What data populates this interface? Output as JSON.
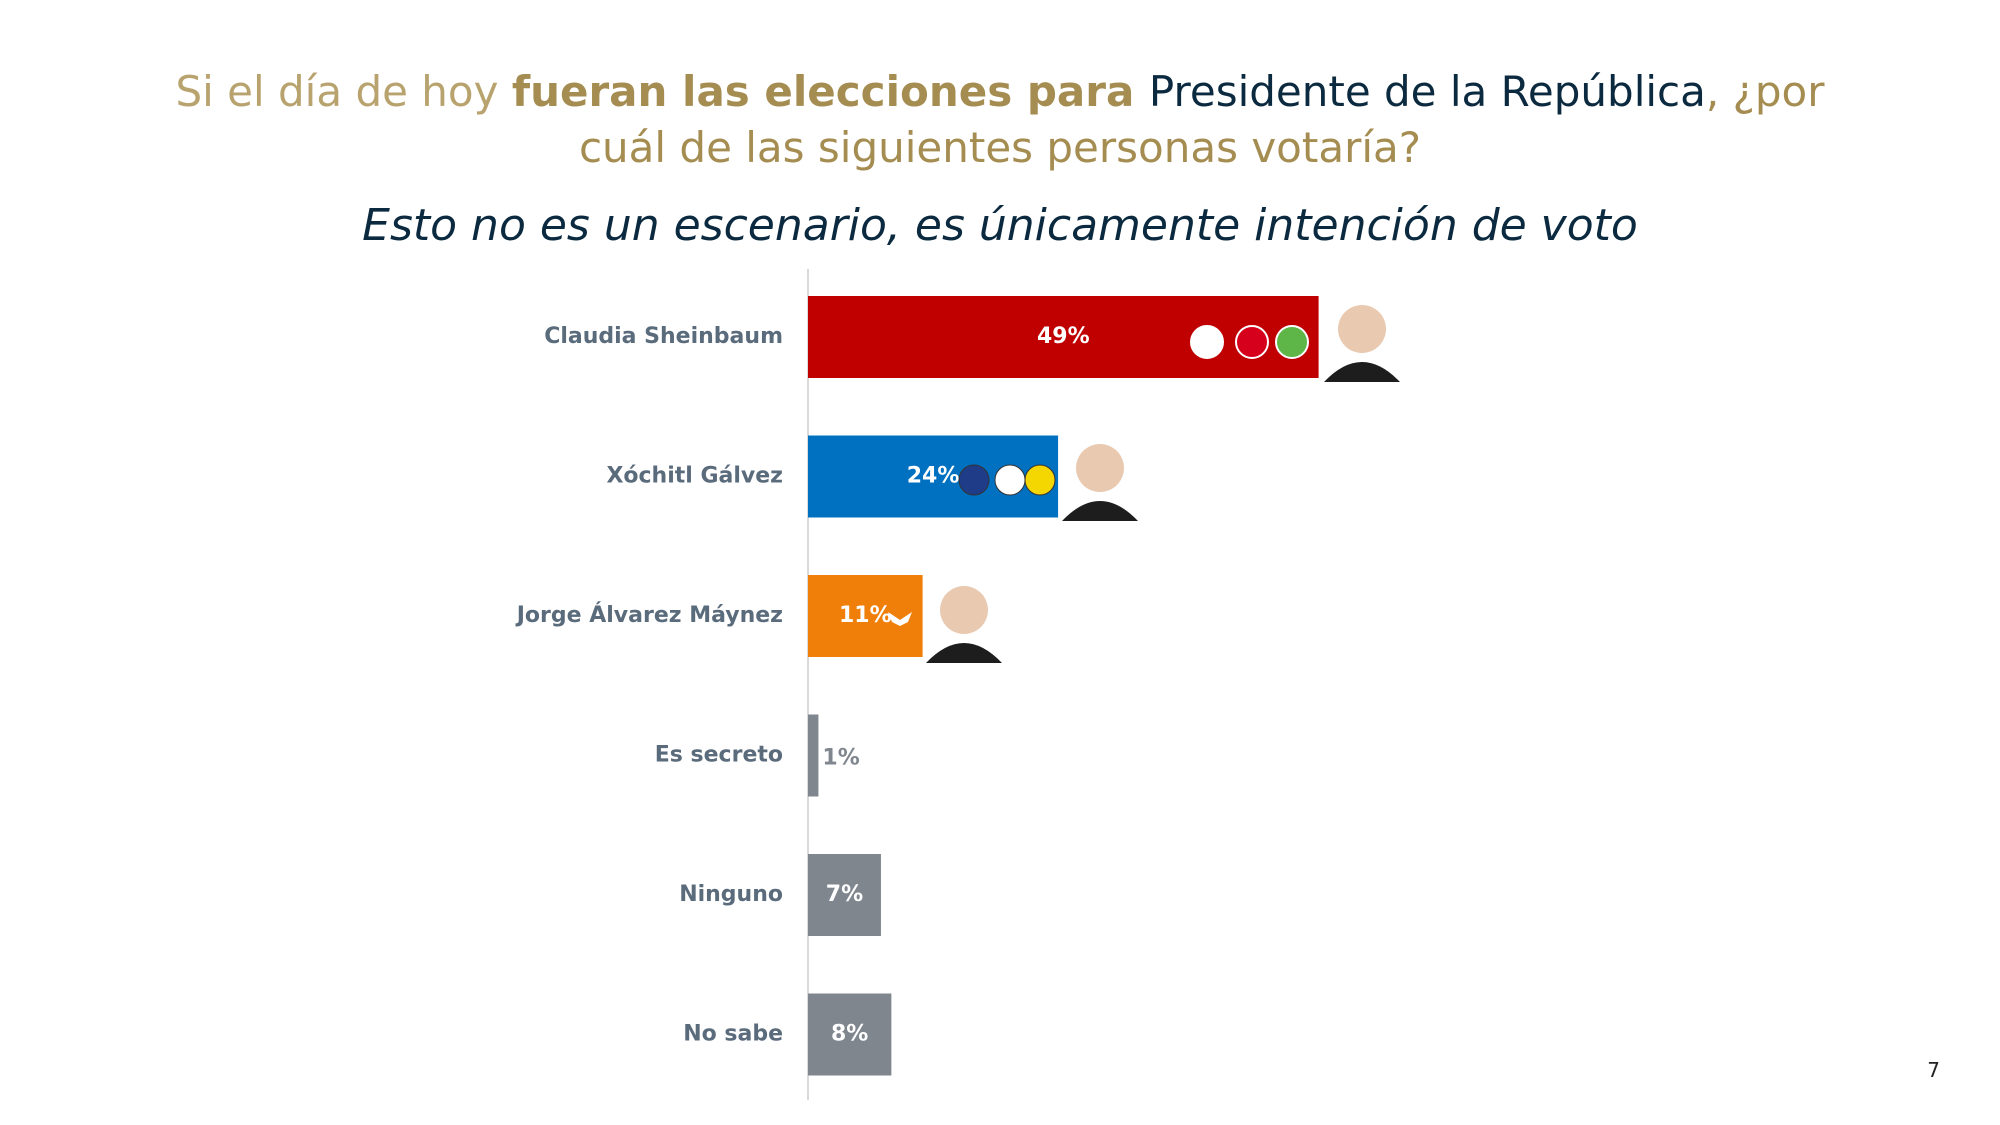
{
  "chart_data": {
    "type": "hbar",
    "title": [
      "Si el día de hoy ",
      "fueran las elecciones para ",
      "Presidente de la República",
      ", ¿por cuál de las siguientes personas votaría?"
    ],
    "subtitle": "Esto no es un escenario, es únicamente intención de voto",
    "categories": [
      "Claudia Sheinbaum",
      "Xóchitl Gálvez",
      "Jorge Álvarez Máynez",
      "Es secreto",
      "Ninguno",
      "No sabe"
    ],
    "values": [
      49,
      24,
      11,
      1,
      7,
      8
    ],
    "value_labels": [
      "49%",
      "24%",
      "11%",
      "1%",
      "7%",
      "8%"
    ],
    "colors": [
      "#c00000",
      "#0070c0",
      "#f07f09",
      "#7f868e",
      "#7f868e",
      "#7f868e"
    ],
    "xlim": [
      0,
      100
    ]
  },
  "page_number": "7"
}
